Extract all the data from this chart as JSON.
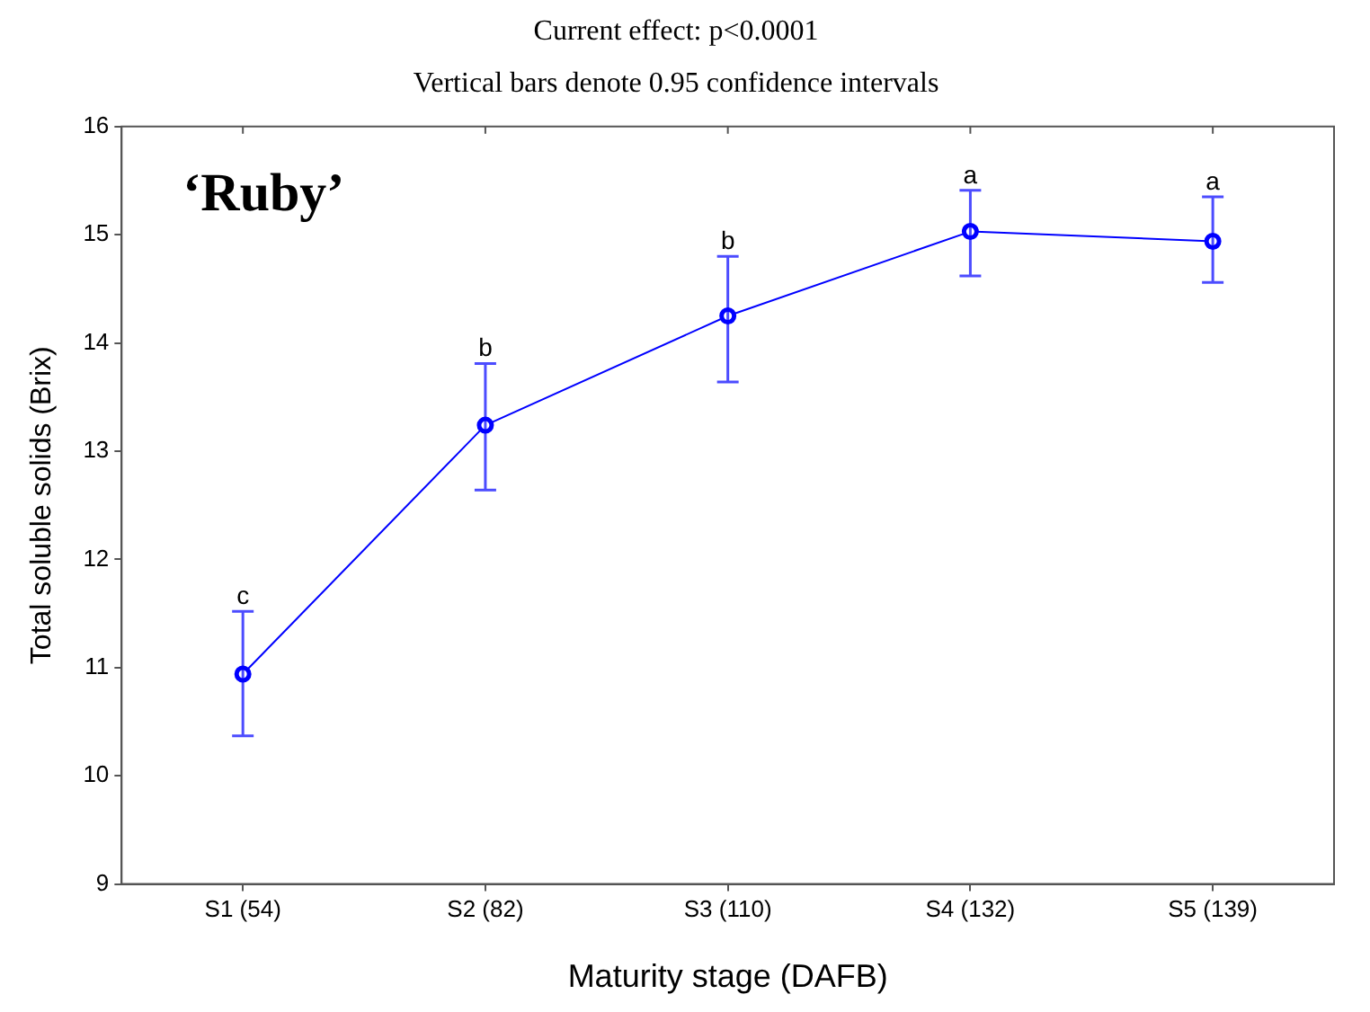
{
  "chart_data": {
    "type": "line",
    "title": "Current effect: p<0.0001",
    "subtitle": "Vertical bars denote 0.95 confidence intervals",
    "xlabel": "Maturity stage (DAFB)",
    "ylabel": "Total soluble solids (Brix)",
    "categories": [
      "S1 (54)",
      "S2 (82)",
      "S3 (110)",
      "S4 (132)",
      "S5 (139)"
    ],
    "series": [
      {
        "color": "#0000ff",
        "values": [
          10.94,
          13.24,
          14.25,
          15.03,
          14.94
        ],
        "errors": [
          [
            10.37,
            11.52
          ],
          [
            12.64,
            13.81
          ],
          [
            13.64,
            14.8
          ],
          [
            14.62,
            15.41
          ],
          [
            14.56,
            15.35
          ]
        ]
      }
    ],
    "ylim": [
      9,
      16
    ],
    "yticks": [
      9,
      10,
      11,
      12,
      13,
      14,
      15,
      16
    ],
    "grid": false,
    "legend": false,
    "marker": "circle",
    "line_style": "solid",
    "annotations": [
      "‘Ruby’",
      {
        "text": "c",
        "x": "S1 (54)",
        "y": 11.52
      },
      {
        "text": "b",
        "x": "S2 (82)",
        "y": 13.81
      },
      {
        "text": "b",
        "x": "S3 (110)",
        "y": 14.8
      },
      {
        "text": "a",
        "x": "S4 (132)",
        "y": 15.41
      },
      {
        "text": "a",
        "x": "S5 (139)",
        "y": 15.35
      }
    ]
  }
}
